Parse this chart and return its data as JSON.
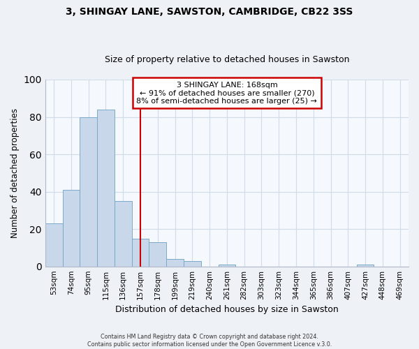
{
  "title": "3, SHINGAY LANE, SAWSTON, CAMBRIDGE, CB22 3SS",
  "subtitle": "Size of property relative to detached houses in Sawston",
  "xlabel": "Distribution of detached houses by size in Sawston",
  "ylabel": "Number of detached properties",
  "bin_labels": [
    "53sqm",
    "74sqm",
    "95sqm",
    "115sqm",
    "136sqm",
    "157sqm",
    "178sqm",
    "199sqm",
    "219sqm",
    "240sqm",
    "261sqm",
    "282sqm",
    "303sqm",
    "323sqm",
    "344sqm",
    "365sqm",
    "386sqm",
    "407sqm",
    "427sqm",
    "448sqm",
    "469sqm"
  ],
  "bar_heights": [
    23,
    41,
    80,
    84,
    35,
    15,
    13,
    4,
    3,
    0,
    1,
    0,
    0,
    0,
    0,
    0,
    0,
    0,
    1,
    0,
    0
  ],
  "bar_color": "#c8d8ea",
  "bar_edge_color": "#7aaac8",
  "vline_color": "#cc0000",
  "vline_pos": 5.5,
  "ylim": [
    0,
    100
  ],
  "annotation_title": "3 SHINGAY LANE: 168sqm",
  "annotation_line1": "← 91% of detached houses are smaller (270)",
  "annotation_line2": "8% of semi-detached houses are larger (25) →",
  "annotation_box_color": "#cc0000",
  "footer_line1": "Contains HM Land Registry data © Crown copyright and database right 2024.",
  "footer_line2": "Contains public sector information licensed under the Open Government Licence v.3.0.",
  "bg_color": "#eef2f7",
  "plot_bg_color": "#f5f8fc",
  "grid_color": "#d0dcea"
}
